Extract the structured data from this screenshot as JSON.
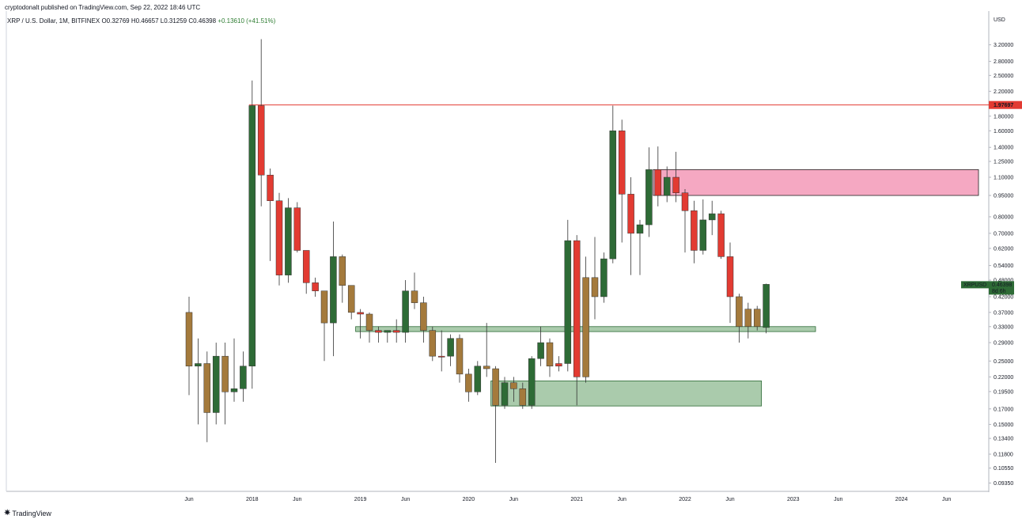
{
  "header": {
    "published": "cryptodonalt published on TradingView.com, Sep 22, 2022 18:46 UTC",
    "symbol_line": "XRP / U.S. Dollar, 1M, BITFINEX",
    "open": "O0.32769",
    "high": "H0.46657",
    "low": "L0.31259",
    "close": "C0.46398",
    "change": "+0.13610 (+41.51%)"
  },
  "footer": {
    "brand": "TradingView"
  },
  "colors": {
    "up": "#2e6b36",
    "down": "#e23b32",
    "transition": "#a47a3c",
    "resistance_line": "#e23b32",
    "demand_zone": "#a5c8a8",
    "supply_zone": "#f4a3bf"
  },
  "chart_data": {
    "type": "candlestick",
    "currency_label": "USD",
    "scale": "log",
    "ylim": [
      0.088,
      4.2
    ],
    "y_ticks": [
      0.0935,
      0.1055,
      0.118,
      0.134,
      0.15,
      0.17,
      0.1955,
      0.22,
      0.25,
      0.29,
      0.33,
      0.37,
      0.42,
      0.48,
      0.54,
      0.62,
      0.7,
      0.8,
      0.95,
      1.1,
      1.25,
      1.4,
      1.6,
      1.8,
      2.2,
      2.5,
      2.8,
      3.2
    ],
    "y_tick_labels": [
      "0.09350",
      "0.10550",
      "0.11800",
      "0.13400",
      "0.15000",
      "0.17000",
      "0.19500",
      "0.22000",
      "0.25000",
      "0.29000",
      "0.33000",
      "0.37000",
      "0.42000",
      "0.48000",
      "0.54000",
      "0.62000",
      "0.70000",
      "0.80000",
      "0.95000",
      "1.10000",
      "1.25000",
      "1.40000",
      "1.60000",
      "1.80000",
      "2.20000",
      "2.50000",
      "2.80000",
      "3.20000"
    ],
    "x_labels": [
      {
        "label": "Jun",
        "month_index": 0
      },
      {
        "label": "2018",
        "month_index": 7
      },
      {
        "label": "Jun",
        "month_index": 12
      },
      {
        "label": "2019",
        "month_index": 19
      },
      {
        "label": "Jun",
        "month_index": 24
      },
      {
        "label": "2020",
        "month_index": 31
      },
      {
        "label": "Jun",
        "month_index": 36
      },
      {
        "label": "2021",
        "month_index": 43
      },
      {
        "label": "Jun",
        "month_index": 48
      },
      {
        "label": "2022",
        "month_index": 55
      },
      {
        "label": "Jun",
        "month_index": 60
      },
      {
        "label": "2023",
        "month_index": 67
      },
      {
        "label": "Jun",
        "month_index": 72
      },
      {
        "label": "2024",
        "month_index": 79
      },
      {
        "label": "Jun",
        "month_index": 84
      }
    ],
    "candles": [
      {
        "t": "2017-05",
        "o": 0.37,
        "h": 0.42,
        "l": 0.19,
        "c": 0.24,
        "k": "t"
      },
      {
        "t": "2017-06",
        "o": 0.24,
        "h": 0.3,
        "l": 0.15,
        "c": 0.245,
        "k": "u"
      },
      {
        "t": "2017-07",
        "o": 0.245,
        "h": 0.27,
        "l": 0.13,
        "c": 0.165,
        "k": "t"
      },
      {
        "t": "2017-08",
        "o": 0.165,
        "h": 0.29,
        "l": 0.15,
        "c": 0.26,
        "k": "u"
      },
      {
        "t": "2017-09",
        "o": 0.26,
        "h": 0.29,
        "l": 0.15,
        "c": 0.195,
        "k": "t"
      },
      {
        "t": "2017-10",
        "o": 0.195,
        "h": 0.3,
        "l": 0.18,
        "c": 0.2,
        "k": "u"
      },
      {
        "t": "2017-11",
        "o": 0.2,
        "h": 0.27,
        "l": 0.18,
        "c": 0.24,
        "k": "u"
      },
      {
        "t": "2017-12",
        "o": 0.24,
        "h": 2.4,
        "l": 0.2,
        "c": 1.96,
        "k": "u"
      },
      {
        "t": "2018-01",
        "o": 1.96,
        "h": 3.35,
        "l": 0.87,
        "c": 1.12,
        "k": "d"
      },
      {
        "t": "2018-02",
        "o": 1.12,
        "h": 1.18,
        "l": 0.56,
        "c": 0.91,
        "k": "d"
      },
      {
        "t": "2018-03",
        "o": 0.91,
        "h": 0.97,
        "l": 0.46,
        "c": 0.5,
        "k": "d"
      },
      {
        "t": "2018-04",
        "o": 0.5,
        "h": 0.93,
        "l": 0.47,
        "c": 0.86,
        "k": "u"
      },
      {
        "t": "2018-05",
        "o": 0.86,
        "h": 0.9,
        "l": 0.6,
        "c": 0.61,
        "k": "d"
      },
      {
        "t": "2018-06",
        "o": 0.61,
        "h": 0.61,
        "l": 0.43,
        "c": 0.47,
        "k": "d"
      },
      {
        "t": "2018-07",
        "o": 0.47,
        "h": 0.49,
        "l": 0.42,
        "c": 0.44,
        "k": "d"
      },
      {
        "t": "2018-08",
        "o": 0.44,
        "h": 0.44,
        "l": 0.25,
        "c": 0.34,
        "k": "t"
      },
      {
        "t": "2018-09",
        "o": 0.34,
        "h": 0.77,
        "l": 0.26,
        "c": 0.58,
        "k": "u"
      },
      {
        "t": "2018-10",
        "o": 0.58,
        "h": 0.59,
        "l": 0.4,
        "c": 0.46,
        "k": "t"
      },
      {
        "t": "2018-11",
        "o": 0.46,
        "h": 0.46,
        "l": 0.35,
        "c": 0.37,
        "k": "t"
      },
      {
        "t": "2018-12",
        "o": 0.37,
        "h": 0.38,
        "l": 0.3,
        "c": 0.365,
        "k": "d"
      },
      {
        "t": "2019-01",
        "o": 0.365,
        "h": 0.37,
        "l": 0.29,
        "c": 0.32,
        "k": "t"
      },
      {
        "t": "2019-02",
        "o": 0.32,
        "h": 0.33,
        "l": 0.29,
        "c": 0.315,
        "k": "d"
      },
      {
        "t": "2019-03",
        "o": 0.315,
        "h": 0.32,
        "l": 0.29,
        "c": 0.32,
        "k": "u"
      },
      {
        "t": "2019-04",
        "o": 0.32,
        "h": 0.35,
        "l": 0.29,
        "c": 0.315,
        "k": "d"
      },
      {
        "t": "2019-05",
        "o": 0.315,
        "h": 0.48,
        "l": 0.29,
        "c": 0.44,
        "k": "u"
      },
      {
        "t": "2019-06",
        "o": 0.44,
        "h": 0.51,
        "l": 0.38,
        "c": 0.4,
        "k": "t"
      },
      {
        "t": "2019-07",
        "o": 0.4,
        "h": 0.42,
        "l": 0.29,
        "c": 0.32,
        "k": "t"
      },
      {
        "t": "2019-08",
        "o": 0.32,
        "h": 0.33,
        "l": 0.25,
        "c": 0.26,
        "k": "t"
      },
      {
        "t": "2019-09",
        "o": 0.26,
        "h": 0.32,
        "l": 0.23,
        "c": 0.26,
        "k": "d"
      },
      {
        "t": "2019-10",
        "o": 0.26,
        "h": 0.31,
        "l": 0.24,
        "c": 0.3,
        "k": "u"
      },
      {
        "t": "2019-11",
        "o": 0.3,
        "h": 0.31,
        "l": 0.21,
        "c": 0.225,
        "k": "t"
      },
      {
        "t": "2019-12",
        "o": 0.225,
        "h": 0.235,
        "l": 0.18,
        "c": 0.195,
        "k": "t"
      },
      {
        "t": "2020-01",
        "o": 0.195,
        "h": 0.25,
        "l": 0.19,
        "c": 0.24,
        "k": "u"
      },
      {
        "t": "2020-02",
        "o": 0.24,
        "h": 0.34,
        "l": 0.22,
        "c": 0.235,
        "k": "t"
      },
      {
        "t": "2020-03",
        "o": 0.235,
        "h": 0.24,
        "l": 0.11,
        "c": 0.175,
        "k": "t"
      },
      {
        "t": "2020-04",
        "o": 0.175,
        "h": 0.22,
        "l": 0.17,
        "c": 0.21,
        "k": "u"
      },
      {
        "t": "2020-05",
        "o": 0.21,
        "h": 0.22,
        "l": 0.18,
        "c": 0.2,
        "k": "t"
      },
      {
        "t": "2020-06",
        "o": 0.2,
        "h": 0.21,
        "l": 0.17,
        "c": 0.175,
        "k": "t"
      },
      {
        "t": "2020-07",
        "o": 0.175,
        "h": 0.26,
        "l": 0.17,
        "c": 0.255,
        "k": "u"
      },
      {
        "t": "2020-08",
        "o": 0.255,
        "h": 0.33,
        "l": 0.24,
        "c": 0.29,
        "k": "u"
      },
      {
        "t": "2020-09",
        "o": 0.29,
        "h": 0.3,
        "l": 0.22,
        "c": 0.24,
        "k": "t"
      },
      {
        "t": "2020-10",
        "o": 0.24,
        "h": 0.26,
        "l": 0.23,
        "c": 0.245,
        "k": "d"
      },
      {
        "t": "2020-11",
        "o": 0.245,
        "h": 0.78,
        "l": 0.23,
        "c": 0.66,
        "k": "u"
      },
      {
        "t": "2020-12",
        "o": 0.66,
        "h": 0.69,
        "l": 0.175,
        "c": 0.22,
        "k": "d"
      },
      {
        "t": "2021-01",
        "o": 0.22,
        "h": 0.58,
        "l": 0.21,
        "c": 0.49,
        "k": "t"
      },
      {
        "t": "2021-02",
        "o": 0.49,
        "h": 0.68,
        "l": 0.35,
        "c": 0.42,
        "k": "t"
      },
      {
        "t": "2021-03",
        "o": 0.42,
        "h": 0.6,
        "l": 0.4,
        "c": 0.57,
        "k": "u"
      },
      {
        "t": "2021-04",
        "o": 0.57,
        "h": 1.96,
        "l": 0.55,
        "c": 1.6,
        "k": "u"
      },
      {
        "t": "2021-05",
        "o": 1.6,
        "h": 1.75,
        "l": 0.65,
        "c": 0.96,
        "k": "d"
      },
      {
        "t": "2021-06",
        "o": 0.96,
        "h": 1.1,
        "l": 0.5,
        "c": 0.7,
        "k": "d"
      },
      {
        "t": "2021-07",
        "o": 0.7,
        "h": 0.78,
        "l": 0.5,
        "c": 0.75,
        "k": "u"
      },
      {
        "t": "2021-08",
        "o": 0.75,
        "h": 1.4,
        "l": 0.68,
        "c": 1.17,
        "k": "u"
      },
      {
        "t": "2021-09",
        "o": 1.17,
        "h": 1.41,
        "l": 0.87,
        "c": 0.95,
        "k": "d"
      },
      {
        "t": "2021-10",
        "o": 0.95,
        "h": 1.2,
        "l": 0.9,
        "c": 1.1,
        "k": "u"
      },
      {
        "t": "2021-11",
        "o": 1.1,
        "h": 1.35,
        "l": 0.9,
        "c": 0.97,
        "k": "d"
      },
      {
        "t": "2021-12",
        "o": 0.97,
        "h": 1.0,
        "l": 0.6,
        "c": 0.84,
        "k": "d"
      },
      {
        "t": "2022-01",
        "o": 0.84,
        "h": 0.91,
        "l": 0.55,
        "c": 0.61,
        "k": "d"
      },
      {
        "t": "2022-02",
        "o": 0.61,
        "h": 0.92,
        "l": 0.59,
        "c": 0.78,
        "k": "u"
      },
      {
        "t": "2022-03",
        "o": 0.78,
        "h": 0.91,
        "l": 0.69,
        "c": 0.82,
        "k": "u"
      },
      {
        "t": "2022-04",
        "o": 0.82,
        "h": 0.84,
        "l": 0.57,
        "c": 0.58,
        "k": "d"
      },
      {
        "t": "2022-05",
        "o": 0.58,
        "h": 0.65,
        "l": 0.34,
        "c": 0.42,
        "k": "d"
      },
      {
        "t": "2022-06",
        "o": 0.42,
        "h": 0.43,
        "l": 0.29,
        "c": 0.33,
        "k": "t"
      },
      {
        "t": "2022-07",
        "o": 0.33,
        "h": 0.4,
        "l": 0.3,
        "c": 0.38,
        "k": "t"
      },
      {
        "t": "2022-08",
        "o": 0.38,
        "h": 0.39,
        "l": 0.32,
        "c": 0.33,
        "k": "t"
      },
      {
        "t": "2022-09",
        "o": 0.32769,
        "h": 0.46657,
        "l": 0.31259,
        "c": 0.46398,
        "k": "u"
      }
    ],
    "annotations": {
      "resistance_level": {
        "price": 1.97,
        "label": "1.97697",
        "from_month": 7
      },
      "current_price": {
        "label": "0.46398",
        "symbol": "XRPUSD",
        "countdown": "8d 6h"
      },
      "supply_zone": {
        "from_month": 52,
        "to_month": "end",
        "low": 0.95,
        "high": 1.17
      },
      "demand_zone_upper": {
        "from_month": 19,
        "to_month": 70,
        "low": 0.317,
        "high": 0.33
      },
      "demand_zone_lower": {
        "from_month": 34,
        "to_month": 64,
        "low": 0.174,
        "high": 0.213
      }
    }
  }
}
